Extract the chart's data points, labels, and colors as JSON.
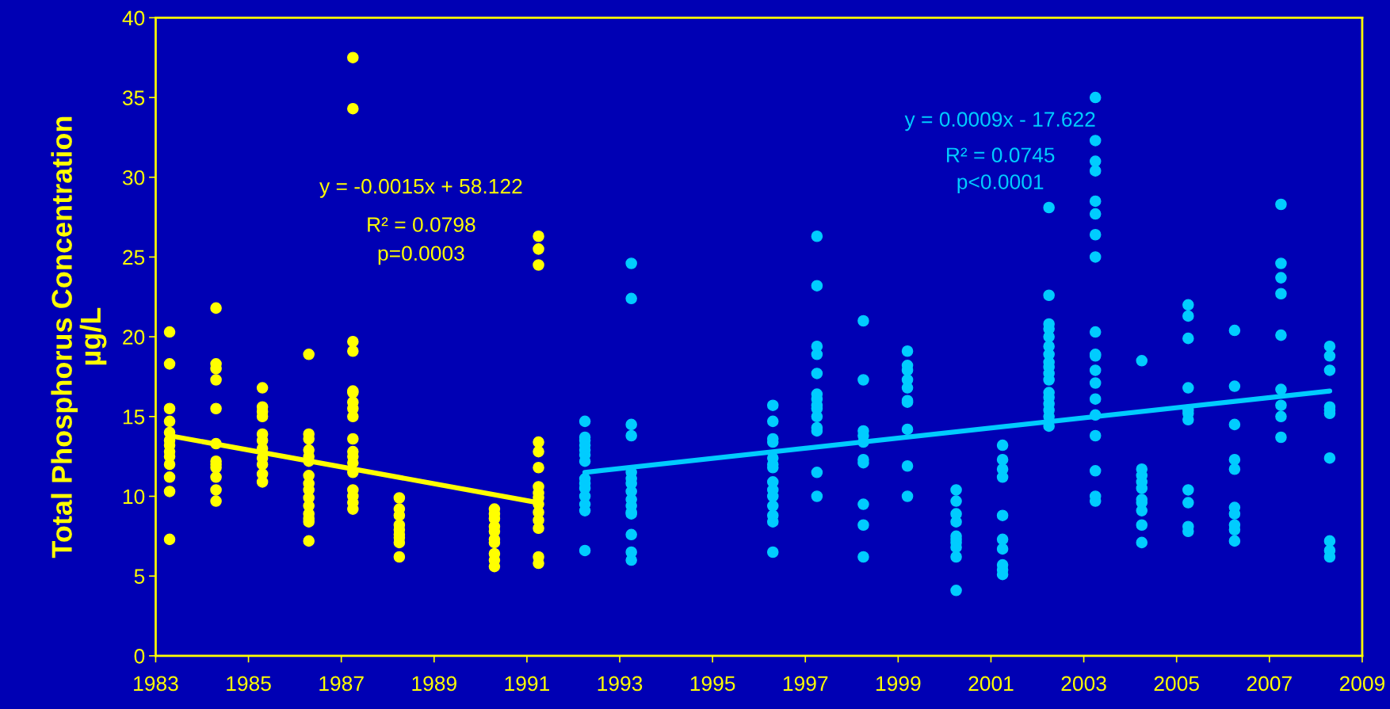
{
  "chart_data": {
    "type": "scatter",
    "ylabel": "Total Phosphorus Concentration\nµg/L",
    "xlim": [
      1983,
      2009
    ],
    "xticks": [
      1983,
      1985,
      1987,
      1989,
      1991,
      1993,
      1995,
      1997,
      1999,
      2001,
      2003,
      2005,
      2007,
      2009
    ],
    "ylim": [
      0,
      40
    ],
    "yticks": [
      0,
      5,
      10,
      15,
      20,
      25,
      30,
      35,
      40
    ],
    "grid": false,
    "annotations": [
      "y = -0.0015x + 58.122",
      "R² = 0.0798",
      "p=0.0003",
      "y = 0.0009x - 17.622",
      "R² = 0.0745",
      "p<0.0001"
    ],
    "series": [
      {
        "marker": "circle",
        "color": "#ffff00",
        "x": [
          1983.3,
          1983.3,
          1983.3,
          1983.3,
          1983.3,
          1983.3,
          1983.3,
          1983.3,
          1983.3,
          1983.3,
          1983.3,
          1983.3,
          1983.3,
          1984.3,
          1984.3,
          1984.3,
          1984.3,
          1984.3,
          1984.3,
          1984.3,
          1984.3,
          1984.3,
          1984.3,
          1984.3,
          1984.3,
          1985.3,
          1985.3,
          1985.3,
          1985.3,
          1985.3,
          1985.3,
          1985.3,
          1985.3,
          1985.3,
          1985.3,
          1985.3,
          1986.3,
          1986.3,
          1986.3,
          1986.3,
          1986.3,
          1986.3,
          1986.3,
          1986.3,
          1986.3,
          1986.3,
          1986.3,
          1986.3,
          1986.3,
          1986.3,
          1986.3,
          1987.25,
          1987.25,
          1987.25,
          1987.25,
          1987.25,
          1987.25,
          1987.25,
          1987.25,
          1987.25,
          1987.25,
          1987.25,
          1987.25,
          1987.25,
          1987.25,
          1987.25,
          1987.25,
          1987.25,
          1987.25,
          1988.25,
          1988.25,
          1988.25,
          1988.25,
          1988.25,
          1988.25,
          1988.25,
          1988.25,
          1988.25,
          1990.3,
          1990.3,
          1990.3,
          1990.3,
          1990.3,
          1990.3,
          1990.3,
          1990.3,
          1990.3,
          1990.3,
          1991.25,
          1991.25,
          1991.25,
          1991.25,
          1991.25,
          1991.25,
          1991.25,
          1991.25,
          1991.25,
          1991.25,
          1991.25,
          1991.25,
          1991.25,
          1991.25,
          1991.25
        ],
        "values": [
          20.3,
          18.3,
          15.5,
          14.7,
          14.0,
          13.5,
          13.2,
          12.8,
          12.5,
          12.0,
          11.2,
          10.3,
          7.3,
          21.8,
          18.3,
          18.0,
          17.3,
          15.5,
          13.3,
          12.2,
          12.0,
          11.8,
          11.2,
          10.4,
          9.7,
          16.8,
          15.6,
          15.3,
          15.0,
          13.9,
          13.5,
          13.0,
          12.4,
          12.0,
          11.4,
          10.9,
          18.9,
          13.9,
          13.6,
          12.9,
          12.5,
          12.2,
          11.3,
          10.8,
          10.4,
          9.9,
          9.4,
          8.9,
          8.6,
          8.4,
          7.2,
          37.5,
          34.3,
          19.7,
          19.1,
          16.6,
          16.5,
          15.9,
          15.5,
          15.0,
          13.6,
          12.8,
          12.5,
          12.1,
          11.5,
          10.4,
          10.0,
          9.6,
          9.2,
          9.9,
          9.2,
          8.8,
          8.2,
          7.9,
          7.6,
          7.4,
          7.1,
          6.2,
          9.2,
          8.9,
          8.6,
          8.1,
          7.8,
          7.3,
          7.1,
          6.4,
          6.0,
          5.6,
          26.3,
          25.5,
          24.5,
          13.4,
          12.8,
          11.8,
          10.6,
          10.2,
          9.9,
          9.5,
          9.0,
          8.5,
          8.0,
          6.2,
          5.8
        ]
      },
      {
        "marker": "circle",
        "color": "#00ccff",
        "x": [
          1992.25,
          1992.25,
          1992.25,
          1992.25,
          1992.25,
          1992.25,
          1992.25,
          1992.25,
          1992.25,
          1992.25,
          1992.25,
          1992.25,
          1992.25,
          1992.25,
          1993.25,
          1993.25,
          1993.25,
          1993.25,
          1993.25,
          1993.25,
          1993.25,
          1993.25,
          1993.25,
          1993.25,
          1993.25,
          1993.25,
          1993.25,
          1993.25,
          1993.25,
          1996.3,
          1996.3,
          1996.3,
          1996.3,
          1996.3,
          1996.3,
          1996.3,
          1996.3,
          1996.3,
          1996.3,
          1996.3,
          1996.3,
          1996.3,
          1996.3,
          1997.25,
          1997.25,
          1997.25,
          1997.25,
          1997.25,
          1997.25,
          1997.25,
          1997.25,
          1997.25,
          1997.25,
          1997.25,
          1997.25,
          1997.25,
          1997.25,
          1998.25,
          1998.25,
          1998.25,
          1998.25,
          1998.25,
          1998.25,
          1998.25,
          1998.25,
          1998.25,
          1998.25,
          1999.2,
          1999.2,
          1999.2,
          1999.2,
          1999.2,
          1999.2,
          1999.2,
          1999.2,
          1999.2,
          1999.2,
          2000.25,
          2000.25,
          2000.25,
          2000.25,
          2000.25,
          2000.25,
          2000.25,
          2000.25,
          2000.25,
          2000.25,
          2001.25,
          2001.25,
          2001.25,
          2001.25,
          2001.25,
          2001.25,
          2001.25,
          2001.25,
          2001.25,
          2001.25,
          2002.25,
          2002.25,
          2002.25,
          2002.25,
          2002.25,
          2002.25,
          2002.25,
          2002.25,
          2002.25,
          2002.25,
          2002.25,
          2002.25,
          2002.25,
          2002.25,
          2002.25,
          2002.25,
          2002.25,
          2003.25,
          2003.25,
          2003.25,
          2003.25,
          2003.25,
          2003.25,
          2003.25,
          2003.25,
          2003.25,
          2003.25,
          2003.25,
          2003.25,
          2003.25,
          2003.25,
          2003.25,
          2003.25,
          2003.25,
          2003.25,
          2003.25,
          2004.25,
          2004.25,
          2004.25,
          2004.25,
          2004.25,
          2004.25,
          2004.25,
          2004.25,
          2004.25,
          2004.25,
          2005.25,
          2005.25,
          2005.25,
          2005.25,
          2005.25,
          2005.25,
          2005.25,
          2005.25,
          2005.25,
          2005.25,
          2005.25,
          2006.25,
          2006.25,
          2006.25,
          2006.25,
          2006.25,
          2006.25,
          2006.25,
          2006.25,
          2006.25,
          2006.25,
          2007.25,
          2007.25,
          2007.25,
          2007.25,
          2007.25,
          2007.25,
          2007.25,
          2007.25,
          2007.25,
          2008.3,
          2008.3,
          2008.3,
          2008.3,
          2008.3,
          2008.3,
          2008.3,
          2008.3,
          2008.3,
          2008.3
        ],
        "values": [
          14.7,
          13.7,
          13.5,
          13.2,
          12.9,
          12.6,
          12.2,
          11.1,
          10.8,
          10.5,
          10.0,
          9.5,
          9.1,
          6.6,
          24.6,
          22.4,
          14.5,
          13.8,
          11.5,
          11.1,
          10.8,
          10.3,
          9.8,
          9.4,
          9.0,
          8.9,
          7.6,
          6.5,
          6.0,
          15.7,
          14.7,
          13.6,
          13.4,
          12.4,
          12.0,
          11.8,
          10.9,
          10.4,
          10.0,
          9.4,
          8.8,
          8.4,
          6.5,
          26.3,
          23.2,
          19.4,
          18.9,
          17.7,
          16.4,
          16.1,
          15.7,
          15.5,
          15.0,
          14.3,
          14.1,
          11.5,
          10.0,
          21.0,
          17.3,
          14.1,
          13.8,
          13.4,
          12.3,
          12.1,
          9.5,
          8.2,
          6.2,
          19.1,
          18.2,
          17.9,
          17.3,
          16.8,
          16.0,
          15.9,
          14.2,
          11.9,
          10.0,
          10.4,
          9.7,
          8.9,
          8.4,
          7.5,
          7.3,
          7.1,
          6.8,
          6.2,
          4.1,
          13.2,
          12.3,
          11.7,
          11.2,
          8.8,
          7.3,
          6.7,
          5.7,
          5.4,
          5.1,
          28.1,
          22.6,
          20.8,
          20.5,
          20.0,
          19.4,
          18.9,
          18.4,
          18.1,
          17.7,
          17.3,
          16.5,
          16.2,
          15.8,
          15.4,
          15.0,
          14.4,
          35.0,
          32.3,
          31.0,
          30.4,
          28.5,
          27.7,
          26.4,
          25.0,
          20.3,
          18.9,
          18.8,
          17.9,
          17.1,
          16.1,
          15.1,
          13.8,
          11.6,
          10.0,
          9.7,
          18.5,
          11.7,
          11.3,
          10.9,
          10.5,
          9.8,
          9.6,
          9.1,
          8.2,
          7.1,
          22.0,
          21.3,
          19.9,
          16.8,
          15.4,
          15.2,
          14.8,
          10.4,
          9.6,
          8.1,
          7.8,
          20.4,
          16.9,
          14.5,
          12.3,
          11.7,
          9.3,
          8.9,
          8.2,
          7.9,
          7.2,
          28.3,
          24.6,
          23.7,
          22.7,
          20.1,
          16.7,
          15.7,
          15.0,
          13.7,
          19.4,
          18.8,
          17.9,
          15.6,
          15.4,
          15.2,
          12.4,
          7.2,
          6.6,
          6.2
        ]
      },
      {
        "type": "line",
        "marker": "none",
        "color": "#ffff00",
        "x": [
          1983.3,
          1991.25
        ],
        "values": [
          13.8,
          9.6
        ]
      },
      {
        "type": "line",
        "marker": "none",
        "color": "#00ccff",
        "x": [
          1992.25,
          2008.3
        ],
        "values": [
          11.5,
          16.6
        ]
      }
    ]
  }
}
